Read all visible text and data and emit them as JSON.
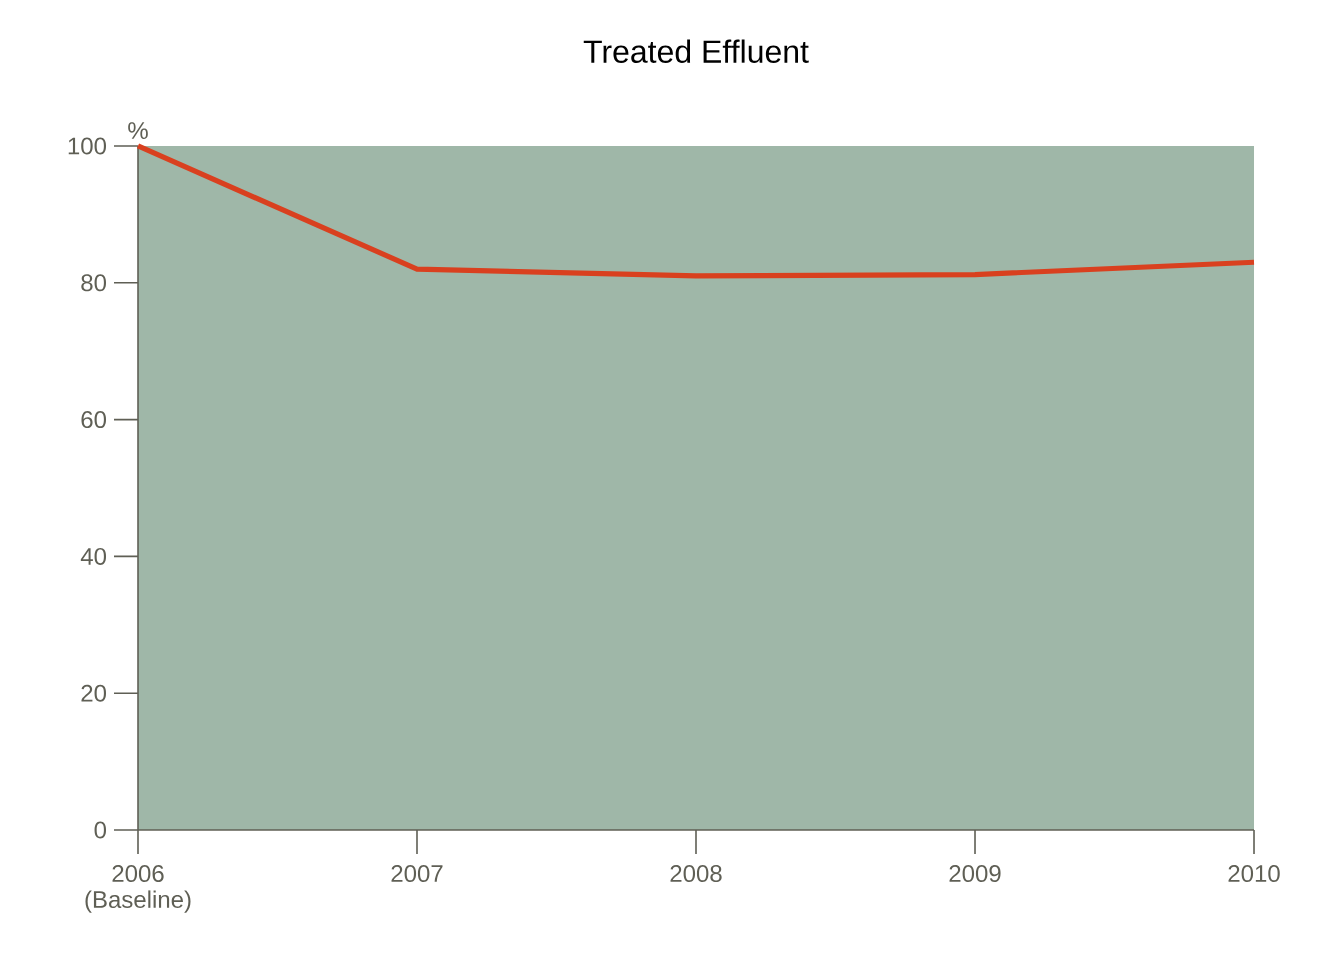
{
  "chart_data": {
    "type": "line",
    "title": "Treated Effluent",
    "ylabel": "%",
    "categories": [
      "2006 (Baseline)",
      "2007",
      "2008",
      "2009",
      "2010"
    ],
    "series": [
      {
        "color": "#d9401f",
        "values": [
          100,
          82,
          81,
          81.2,
          83
        ]
      }
    ],
    "ylim": [
      0,
      100
    ],
    "yticks": [
      0,
      20,
      40,
      60,
      80,
      100
    ],
    "grid": false,
    "marker": "none",
    "line_style": "solid"
  }
}
